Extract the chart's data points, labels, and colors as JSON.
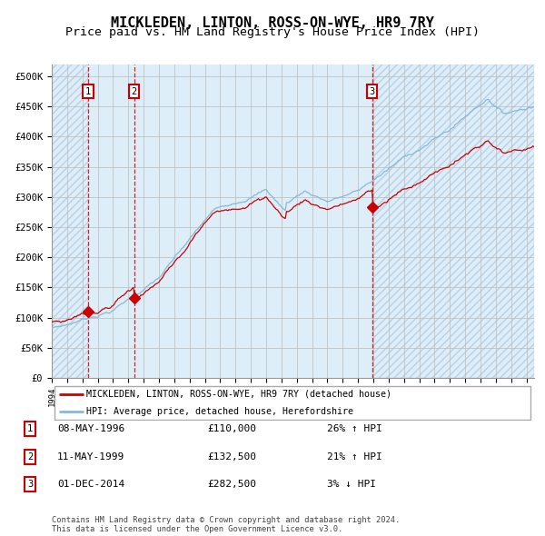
{
  "title": "MICKLEDEN, LINTON, ROSS-ON-WYE, HR9 7RY",
  "subtitle": "Price paid vs. HM Land Registry's House Price Index (HPI)",
  "legend_red": "MICKLEDEN, LINTON, ROSS-ON-WYE, HR9 7RY (detached house)",
  "legend_blue": "HPI: Average price, detached house, Herefordshire",
  "footer": "Contains HM Land Registry data © Crown copyright and database right 2024.\nThis data is licensed under the Open Government Licence v3.0.",
  "sales": [
    {
      "num": 1,
      "date": "08-MAY-1996",
      "price": 110000,
      "pct": "26%",
      "dir": "↑"
    },
    {
      "num": 2,
      "date": "11-MAY-1999",
      "price": 132500,
      "pct": "21%",
      "dir": "↑"
    },
    {
      "num": 3,
      "date": "01-DEC-2014",
      "price": 282500,
      "pct": "3%",
      "dir": "↓"
    }
  ],
  "sale_years": [
    1996.37,
    1999.37,
    2014.92
  ],
  "sale_prices": [
    110000,
    132500,
    282500
  ],
  "ylim": [
    0,
    520000
  ],
  "yticks": [
    0,
    50000,
    100000,
    150000,
    200000,
    250000,
    300000,
    350000,
    400000,
    450000,
    500000
  ],
  "xlim_start": 1994.0,
  "xlim_end": 2025.5,
  "red_color": "#cc0000",
  "blue_color": "#88b8d8",
  "vline_color": "#cc0000",
  "hatch_color": "#c8dff0",
  "plain_bg_color": "#ddeef8",
  "title_fontsize": 11,
  "subtitle_fontsize": 9.5
}
